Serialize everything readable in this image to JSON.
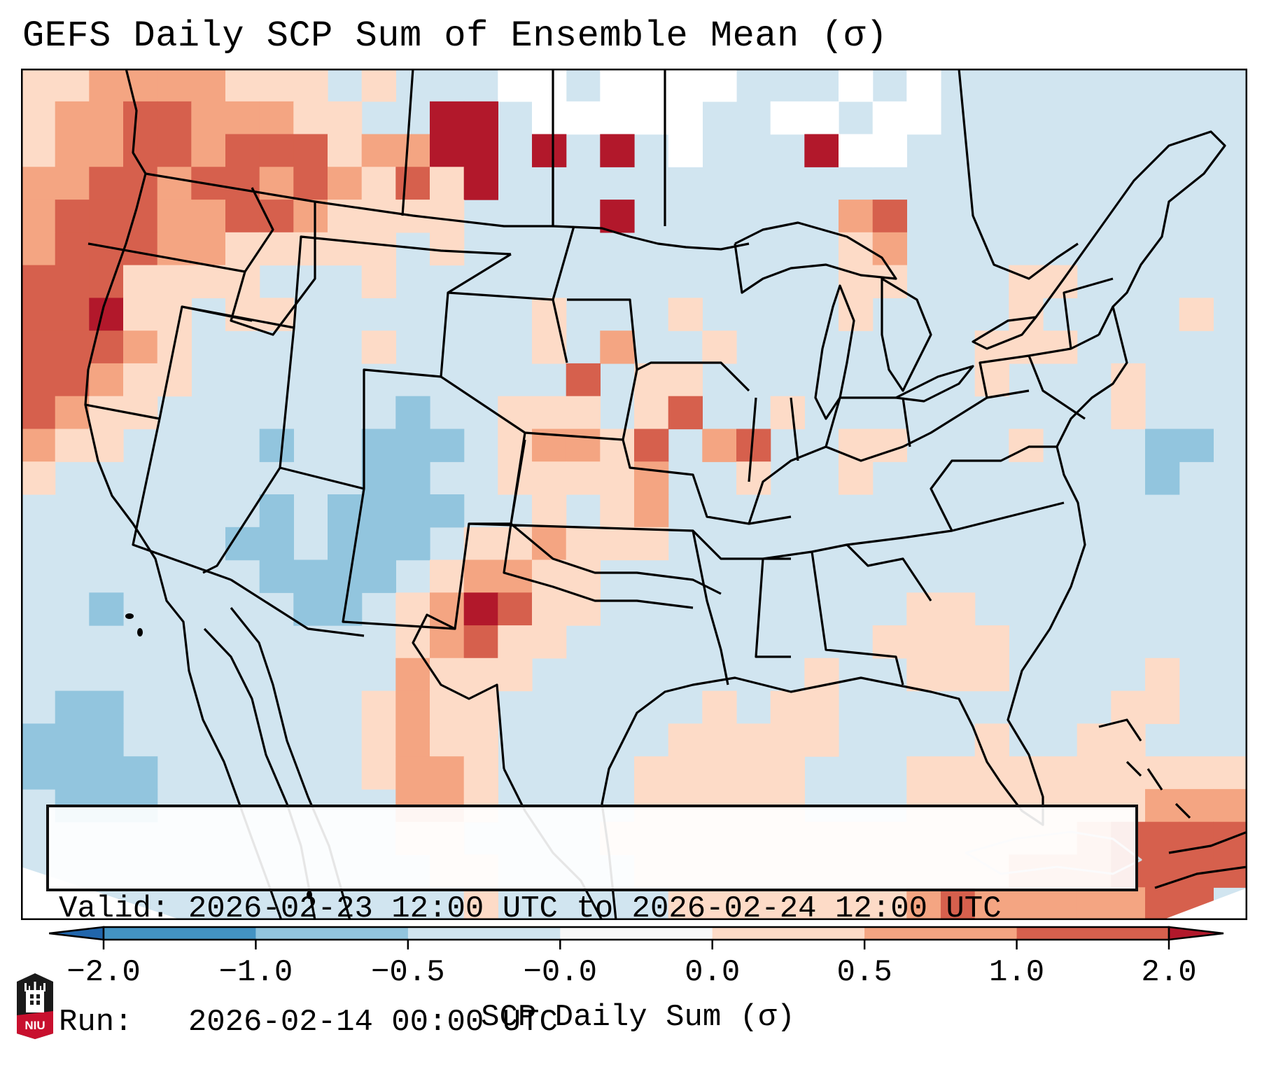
{
  "title": "GEFS Daily SCP Sum of Ensemble Mean (σ)",
  "info": {
    "valid_line": "Valid: 2026-02-23 12:00 UTC to 2026-02-24 12:00 UTC",
    "run_line": "Run:   2026-02-14 00:00 UTC"
  },
  "colorbar": {
    "label": "SCP Daily Sum (σ)",
    "tick_labels": [
      "−2.0",
      "−1.0",
      "−0.5",
      "−0.0",
      "0.0",
      "0.5",
      "1.0",
      "2.0"
    ],
    "extend": "both",
    "bins": [
      {
        "range": "< -2.0",
        "color": "#2166ac"
      },
      {
        "range": "-2.0 to -1.0",
        "color": "#4393c3"
      },
      {
        "range": "-1.0 to -0.5",
        "color": "#92c5de"
      },
      {
        "range": "-0.5 to -0.0",
        "color": "#d1e5f0"
      },
      {
        "range": "-0.0 to 0.0",
        "color": "#f7f7f7"
      },
      {
        "range": "0.0 to 0.5",
        "color": "#fddbc7"
      },
      {
        "range": "0.5 to 1.0",
        "color": "#f4a582"
      },
      {
        "range": "1.0 to 2.0",
        "color": "#d6604d"
      },
      {
        "range": "> 2.0",
        "color": "#b2182b"
      }
    ]
  },
  "logo": {
    "text": "NIU",
    "name": "Northern Illinois University"
  },
  "chart_data": {
    "type": "heatmap",
    "title": "GEFS Daily SCP Sum of Ensemble Mean (σ)",
    "variable": "SCP Daily Sum (σ)",
    "region": "Contiguous United States",
    "levels": [
      -2.0,
      -1.0,
      -0.5,
      -0.0,
      0.0,
      0.5,
      1.0,
      2.0
    ],
    "category_legend": {
      "B": "-1.0 to -0.5",
      "L": "-0.5 to -0.0",
      "W": "-0.0 to 0.0",
      "P": "0.0 to 0.5",
      "O": "0.5 to 1.0",
      "R": "1.0 to 2.0",
      "D": "> 2.0"
    },
    "grid_note": "Approximate coarse field, 36 columns (west to east) x 26 rows (north to south)",
    "grid": [
      "PPOOOOPPPLPLLLWWLWWWWLLLWLWLLLLLLLLL",
      "POORROOOPPLLDDLWWWWWLLWWLWWLLLLLLLLL",
      "POORRORRRPOODDLDLDLWLLLDWWLLLLLLLLLL",
      "OORRORROROPRPDLLLLLLLLLLLLLLLLLLLLLL",
      "ORRROORROPPPPLLLLDLLLLLLORLLLLLLLLLL",
      "ORRROOPPPPPLPLLLLLLLLLLLPOLLLLLLLLLL",
      "RRRPPPPLLLPLLLLLLLLLLLLLPPLLLPPLLLLL",
      "RRDPPLPPLLLLLLLPLLLPLLLLPLLLLPLLLLPL",
      "RRROPLLLLLPLLLLPLOLLPLLLLLLLPPPLLLLL",
      "RROPPLLLLLLLLLLLRLPPLLLLLLLLPLLLPLLL",
      "ROPPLLLLLLLBLLPPPLPRLLPLLLLLLLLLPLLL",
      "OPPLLLLBLLBBBLPOOPRLORLLPPLLLPLLLBBL",
      "PLLLLLLLLLBBLLPPPPOLLPLLPLLLLLLLLBLL",
      "LLLLLLLBLBBBBLLPLPOLLLLLLLLLLLLLLLLL",
      "LLLLLLBBLBBBLPPOPPPLLLLLLLLLLLLLLLLL",
      "LLLLLLLBBBBLPOOPPLLLLLLLLLLLLLLLLLLL",
      "LLBLLLLLBBLPODRPPLLLLLLLLLPPLLLLLLLL",
      "LLLLLLLLLLLPORPPLLLLLLLLLPPPPLLLLLLL",
      "LLLLLLLLLLLOPPPLLLLLLLLPLLPPPLLLLPLL",
      "LBBLLLLLLLPOPPLLLLLLPLPPLLLLLLLLPPLL",
      "BBBLLLLLLLPOPPLLLLLPPPPPLLLLPLLPPLLL",
      "BBBBLLLLLLPOOPLLLLPPPPPLLLPPPPPPPPPP",
      "LBBBLLLLLLLOOPLLLLPPPPPLLLPPPPPPPOOO",
      "LLLLLLLLLLLPPLLLLPPPPPPPPPPPPPPORRRR",
      "LLLLLLLLLLLLPPLLLLPPPPPPPPPPPOOORRRR",
      "LLLLLLLLLLLLLPLLLLLPPPPPPPOROOOOORRL"
    ]
  }
}
